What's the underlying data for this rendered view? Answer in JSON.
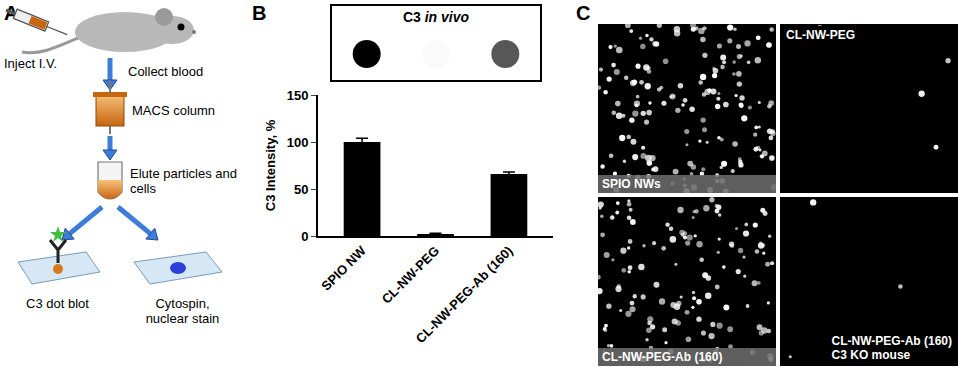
{
  "panel_a": {
    "letter": "A",
    "steps": {
      "inject": "Inject I.V.",
      "collect": "Collect blood",
      "column": "MACS column",
      "elute": "Elute particles and cells",
      "dot_blot": "C3 dot blot",
      "cytospin": "Cytospin, nuclear stain"
    }
  },
  "panel_b": {
    "letter": "B"
  },
  "chart_data": {
    "type": "bar",
    "title": "C3 in vivo",
    "y_label": "C3 Intensity, %",
    "categories": [
      "SPIO NW",
      "CL-NW-PEG",
      "CL-NW-PEG-Ab (160)"
    ],
    "values": [
      100,
      2,
      66
    ],
    "errors": [
      4,
      1,
      2
    ],
    "color": "#000000",
    "ylim": [
      0,
      150
    ],
    "yticks": [
      0,
      50,
      100,
      150
    ],
    "grid": false
  },
  "panel_c": {
    "letter": "C",
    "images": [
      {
        "label": "SPIO NWs"
      },
      {
        "label": "CL-NW-PEG"
      },
      {
        "label": "CL-NW-PEG-Ab (160)"
      },
      {
        "label": "CL-NW-PEG-Ab (160)",
        "sublabel": "C3 KO mouse"
      }
    ]
  }
}
